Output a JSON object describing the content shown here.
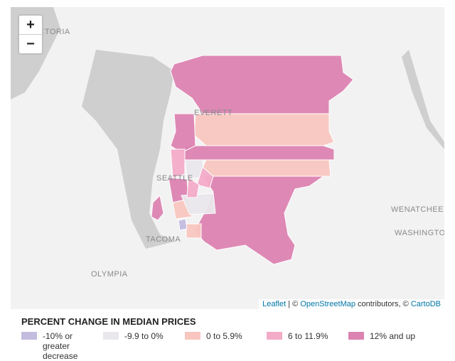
{
  "map": {
    "labels": [
      "VICTORIA",
      "EVERETT",
      "SEATTLE",
      "TACOMA",
      "OLYMPIA",
      "WENATCHEE",
      "WASHINGTON"
    ],
    "zoom": {
      "in": "+",
      "out": "−"
    },
    "attribution": {
      "leaflet": "Leaflet",
      "sep": "|",
      "osm_prefix": "©",
      "osm": "OpenStreetMap",
      "middle": "contributors, ©",
      "carto": "CartoDB"
    }
  },
  "legend": {
    "title": "PERCENT CHANGE IN MEDIAN PRICES",
    "items": [
      {
        "label": "-10% or greater decrease",
        "color": "#c3bcdf"
      },
      {
        "label": "-9.9 to 0%",
        "color": "#e9e7ec"
      },
      {
        "label": "0 to 5.9%",
        "color": "#f8c6bf"
      },
      {
        "label": "6 to 11.9%",
        "color": "#f3abc8"
      },
      {
        "label": "12% and up",
        "color": "#dc83b1"
      }
    ]
  }
}
